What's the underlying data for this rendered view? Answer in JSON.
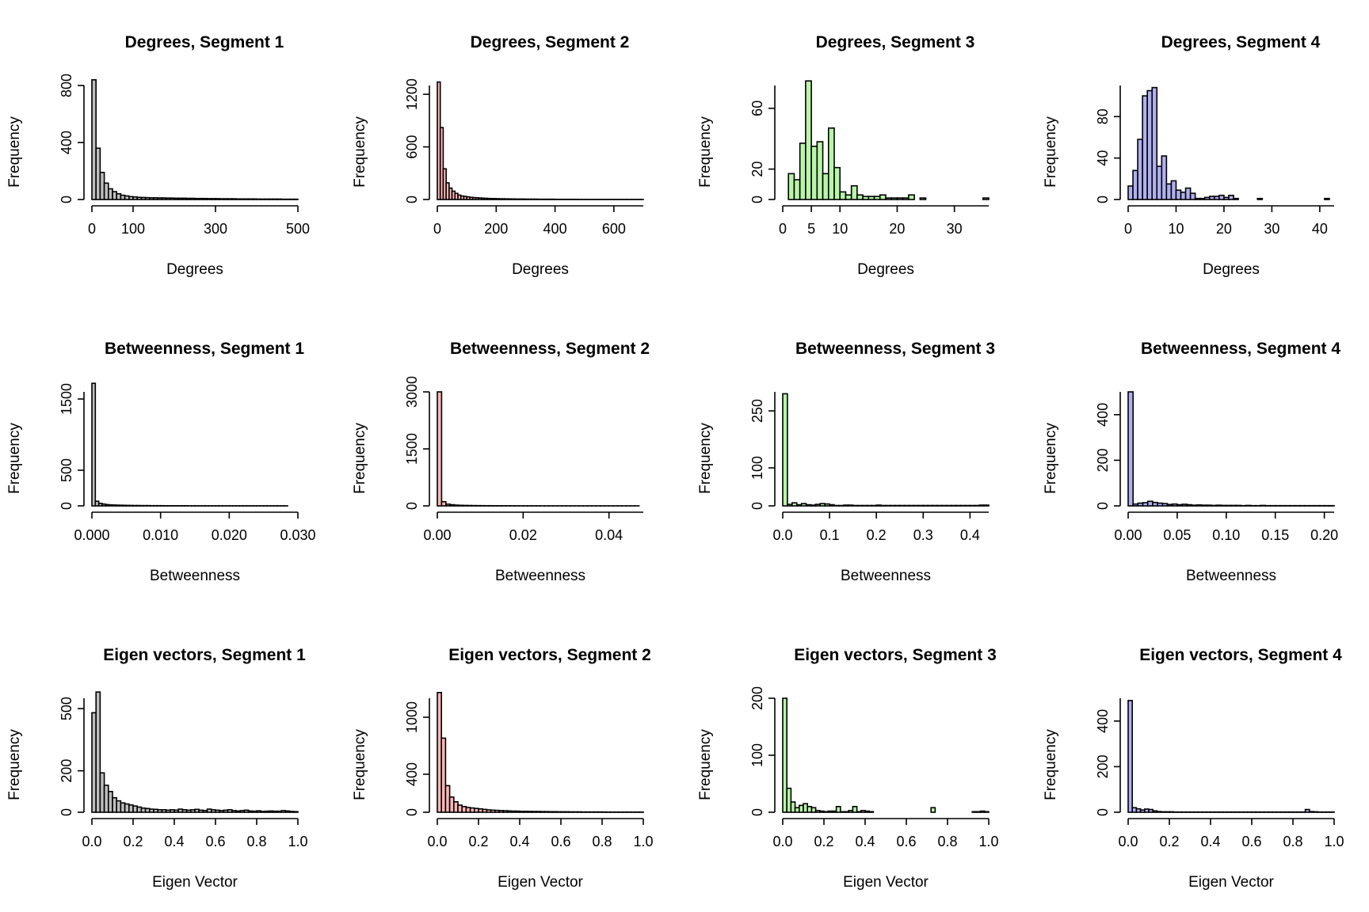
{
  "figure": {
    "colors": {
      "Segment 1": "#bebebe",
      "Segment 2": "#ffb6b6",
      "Segment 3": "#b8f5a8",
      "Segment 4": "#b0b0f0"
    }
  },
  "chart_data": [
    {
      "type": "bar",
      "title": "Degrees, Segment 1",
      "xlabel": "Degrees",
      "ylabel": "Frequency",
      "color": "#bebebe",
      "x_ticks": [
        0,
        100,
        300,
        500
      ],
      "x_axis": [
        0,
        500
      ],
      "y_ticks": [
        0,
        400,
        800
      ],
      "y_axis": [
        0,
        800
      ],
      "bins": {
        "start": 0,
        "width": 10
      },
      "values": [
        840,
        360,
        190,
        115,
        75,
        55,
        40,
        30,
        25,
        20,
        18,
        15,
        14,
        13,
        12,
        12,
        11,
        11,
        10,
        10,
        9,
        9,
        9,
        8,
        8,
        7,
        7,
        7,
        6,
        6,
        6,
        5,
        5,
        5,
        5,
        4,
        4,
        4,
        4,
        4,
        3,
        3,
        3,
        3,
        3,
        3,
        2,
        2,
        2,
        2
      ]
    },
    {
      "type": "bar",
      "title": "Degrees, Segment 2",
      "xlabel": "Degrees",
      "ylabel": "Frequency",
      "color": "#ffb6b6",
      "x_ticks": [
        0,
        200,
        400,
        600
      ],
      "x_axis": [
        0,
        700
      ],
      "y_ticks": [
        0,
        600,
        1200
      ],
      "y_axis": [
        0,
        1300
      ],
      "bins": {
        "start": 0,
        "width": 10
      },
      "values": [
        1340,
        820,
        350,
        190,
        130,
        95,
        70,
        50,
        40,
        35,
        30,
        25,
        22,
        20,
        18,
        15,
        14,
        12,
        11,
        10,
        9,
        8,
        8,
        7,
        7,
        6,
        6,
        5,
        5,
        5,
        4,
        4,
        4,
        4,
        3,
        3,
        3,
        3,
        3,
        3,
        2,
        2,
        2,
        2,
        2,
        2,
        2,
        2,
        1,
        1,
        1,
        1,
        1,
        1,
        1,
        1,
        1,
        1,
        1,
        1,
        1,
        1,
        1,
        1,
        1,
        1,
        1,
        1,
        1,
        1
      ]
    },
    {
      "type": "bar",
      "title": "Degrees, Segment 3",
      "xlabel": "Degrees",
      "ylabel": "Frequency",
      "color": "#b8f5a8",
      "x_ticks": [
        0,
        5,
        10,
        20,
        30
      ],
      "x_axis": [
        0,
        36
      ],
      "y_ticks": [
        0,
        20,
        60
      ],
      "y_axis": [
        0,
        75
      ],
      "bins": {
        "start": 1,
        "width": 1
      },
      "values": [
        17,
        13,
        37,
        78,
        35,
        38,
        17,
        47,
        21,
        5,
        3,
        9,
        3,
        2,
        2,
        2,
        3,
        1,
        1,
        1,
        1,
        3,
        0,
        1,
        0,
        0,
        0,
        0,
        0,
        0,
        0,
        0,
        0,
        0,
        1
      ]
    },
    {
      "type": "bar",
      "title": "Degrees, Segment 4",
      "xlabel": "Degrees",
      "ylabel": "Frequency",
      "color": "#b0b0f0",
      "x_ticks": [
        0,
        10,
        20,
        30,
        40
      ],
      "x_axis": [
        0,
        43
      ],
      "y_ticks": [
        0,
        40,
        80
      ],
      "y_axis": [
        0,
        110
      ],
      "bins": {
        "start": 0,
        "width": 1
      },
      "values": [
        13,
        28,
        58,
        100,
        105,
        108,
        32,
        42,
        15,
        18,
        9,
        7,
        11,
        6,
        1,
        1,
        2,
        3,
        3,
        4,
        2,
        4,
        1,
        0,
        0,
        0,
        0,
        1,
        0,
        0,
        0,
        0,
        0,
        0,
        0,
        0,
        0,
        0,
        0,
        0,
        0,
        1
      ]
    },
    {
      "type": "bar",
      "title": "Betweenness, Segment 1",
      "xlabel": "Betweenness",
      "ylabel": "Frequency",
      "color": "#bebebe",
      "x_ticks": [
        "0.000",
        "0.010",
        "0.020",
        "0.030"
      ],
      "x_axis": [
        0,
        0.03
      ],
      "y_ticks": [
        0,
        500,
        1500
      ],
      "y_axis": [
        0,
        1600
      ],
      "bins": {
        "start": 0,
        "width": 0.0005
      },
      "values": [
        1720,
        65,
        35,
        25,
        18,
        14,
        12,
        10,
        9,
        8,
        7,
        6,
        5,
        5,
        4,
        4,
        4,
        3,
        3,
        3,
        3,
        2,
        2,
        2,
        2,
        2,
        2,
        2,
        1,
        1,
        1,
        1,
        1,
        1,
        1,
        1,
        1,
        1,
        1,
        1,
        1,
        1,
        1,
        1,
        1,
        1,
        1,
        1,
        1,
        1,
        1,
        1,
        1,
        1,
        1,
        1,
        1
      ]
    },
    {
      "type": "bar",
      "title": "Betweenness, Segment 2",
      "xlabel": "Betweenness",
      "ylabel": "Frequency",
      "color": "#ffb6b6",
      "x_ticks": [
        "0.00",
        "0.02",
        "0.04"
      ],
      "x_axis": [
        0,
        0.048
      ],
      "y_ticks": [
        0,
        1500,
        3000
      ],
      "y_axis": [
        0,
        3000
      ],
      "bins": {
        "start": 0,
        "width": 0.001
      },
      "values": [
        3000,
        110,
        45,
        30,
        20,
        15,
        12,
        10,
        8,
        7,
        6,
        5,
        5,
        4,
        4,
        3,
        3,
        3,
        2,
        2,
        2,
        2,
        2,
        2,
        1,
        1,
        1,
        1,
        1,
        1,
        1,
        1,
        1,
        1,
        1,
        1,
        1,
        1,
        1,
        1,
        1,
        1,
        1,
        1,
        1,
        1,
        1
      ]
    },
    {
      "type": "bar",
      "title": "Betweenness, Segment 3",
      "xlabel": "Betweenness",
      "ylabel": "Frequency",
      "color": "#b8f5a8",
      "x_ticks": [
        "0.0",
        "0.1",
        "0.2",
        "0.3",
        "0.4"
      ],
      "x_axis": [
        0,
        0.44
      ],
      "y_ticks": [
        0,
        100,
        250
      ],
      "y_axis": [
        0,
        300
      ],
      "bins": {
        "start": 0,
        "width": 0.01
      },
      "values": [
        295,
        4,
        8,
        3,
        6,
        3,
        2,
        4,
        6,
        5,
        3,
        1,
        1,
        2,
        2,
        1,
        1,
        1,
        1,
        1,
        2,
        1,
        1,
        1,
        1,
        1,
        1,
        1,
        1,
        1,
        1,
        1,
        1,
        1,
        1,
        1,
        1,
        1,
        1,
        1,
        1,
        1,
        2,
        2
      ]
    },
    {
      "type": "bar",
      "title": "Betweenness, Segment 4",
      "xlabel": "Betweenness",
      "ylabel": "Frequency",
      "color": "#b0b0f0",
      "x_ticks": [
        "0.00",
        "0.05",
        "0.10",
        "0.15",
        "0.20"
      ],
      "x_axis": [
        0,
        0.21
      ],
      "y_ticks": [
        0,
        200,
        400
      ],
      "y_axis": [
        0,
        500
      ],
      "bins": {
        "start": 0,
        "width": 0.005
      },
      "values": [
        500,
        8,
        12,
        14,
        20,
        15,
        12,
        10,
        6,
        8,
        5,
        7,
        5,
        3,
        4,
        3,
        3,
        2,
        3,
        2,
        2,
        2,
        2,
        1,
        2,
        1,
        1,
        2,
        1,
        1,
        1,
        1,
        1,
        1,
        1,
        1,
        1,
        1,
        1,
        1,
        1,
        1
      ]
    },
    {
      "type": "bar",
      "title": "Eigen vectors, Segment 1",
      "xlabel": "Eigen Vector",
      "ylabel": "Frequency",
      "color": "#bebebe",
      "x_ticks": [
        "0.0",
        "0.2",
        "0.4",
        "0.6",
        "0.8",
        "1.0"
      ],
      "x_axis": [
        0,
        1
      ],
      "y_ticks": [
        0,
        200,
        500
      ],
      "y_axis": [
        0,
        550
      ],
      "bins": {
        "start": 0,
        "width": 0.02
      },
      "values": [
        480,
        580,
        190,
        130,
        100,
        70,
        55,
        45,
        40,
        35,
        30,
        25,
        20,
        18,
        15,
        14,
        12,
        12,
        10,
        12,
        10,
        15,
        12,
        10,
        12,
        14,
        10,
        8,
        15,
        12,
        10,
        8,
        10,
        12,
        8,
        6,
        8,
        10,
        6,
        5,
        7,
        4,
        5,
        6,
        5,
        5,
        8,
        6,
        4,
        3
      ]
    },
    {
      "type": "bar",
      "title": "Eigen vectors, Segment 2",
      "xlabel": "Eigen Vector",
      "ylabel": "Frequency",
      "color": "#ffb6b6",
      "x_ticks": [
        "0.0",
        "0.2",
        "0.4",
        "0.6",
        "0.8",
        "1.0"
      ],
      "x_axis": [
        0,
        1
      ],
      "y_ticks": [
        0,
        400,
        1000
      ],
      "y_axis": [
        0,
        1200
      ],
      "bins": {
        "start": 0,
        "width": 0.02
      },
      "values": [
        1260,
        780,
        280,
        160,
        110,
        75,
        60,
        50,
        45,
        40,
        35,
        30,
        25,
        22,
        20,
        18,
        16,
        14,
        12,
        12,
        10,
        10,
        9,
        8,
        8,
        7,
        7,
        6,
        6,
        5,
        5,
        5,
        4,
        4,
        4,
        3,
        3,
        3,
        3,
        3,
        3,
        2,
        2,
        2,
        2,
        2,
        2,
        2,
        2,
        2
      ]
    },
    {
      "type": "bar",
      "title": "Eigen vectors, Segment 3",
      "xlabel": "Eigen Vector",
      "ylabel": "Frequency",
      "color": "#b8f5a8",
      "x_ticks": [
        "0.0",
        "0.2",
        "0.4",
        "0.6",
        "0.8",
        "1.0"
      ],
      "x_axis": [
        0,
        1
      ],
      "y_ticks": [
        0,
        100,
        200
      ],
      "y_axis": [
        0,
        200
      ],
      "bins": {
        "start": 0,
        "width": 0.02
      },
      "values": [
        200,
        42,
        18,
        8,
        12,
        15,
        10,
        8,
        3,
        2,
        1,
        2,
        2,
        10,
        1,
        1,
        3,
        10,
        1,
        3,
        2,
        1,
        0,
        0,
        0,
        0,
        0,
        0,
        0,
        0,
        0,
        0,
        0,
        0,
        0,
        0,
        8,
        0,
        0,
        0,
        0,
        0,
        0,
        0,
        0,
        0,
        1,
        1,
        2,
        1
      ]
    },
    {
      "type": "bar",
      "title": "Eigen vectors, Segment 4",
      "xlabel": "Eigen Vector",
      "ylabel": "Frequency",
      "color": "#b0b0f0",
      "x_ticks": [
        "0.0",
        "0.2",
        "0.4",
        "0.6",
        "0.8",
        "1.0"
      ],
      "x_axis": [
        0,
        1
      ],
      "y_ticks": [
        0,
        200,
        400
      ],
      "y_axis": [
        0,
        500
      ],
      "bins": {
        "start": 0,
        "width": 0.02
      },
      "values": [
        490,
        20,
        15,
        10,
        14,
        12,
        6,
        3,
        2,
        2,
        2,
        1,
        1,
        1,
        1,
        1,
        1,
        1,
        1,
        1,
        1,
        1,
        1,
        1,
        1,
        1,
        1,
        1,
        1,
        1,
        1,
        1,
        1,
        1,
        1,
        1,
        1,
        1,
        1,
        1,
        1,
        1,
        1,
        12,
        3,
        2,
        1,
        1,
        1,
        1
      ]
    }
  ]
}
